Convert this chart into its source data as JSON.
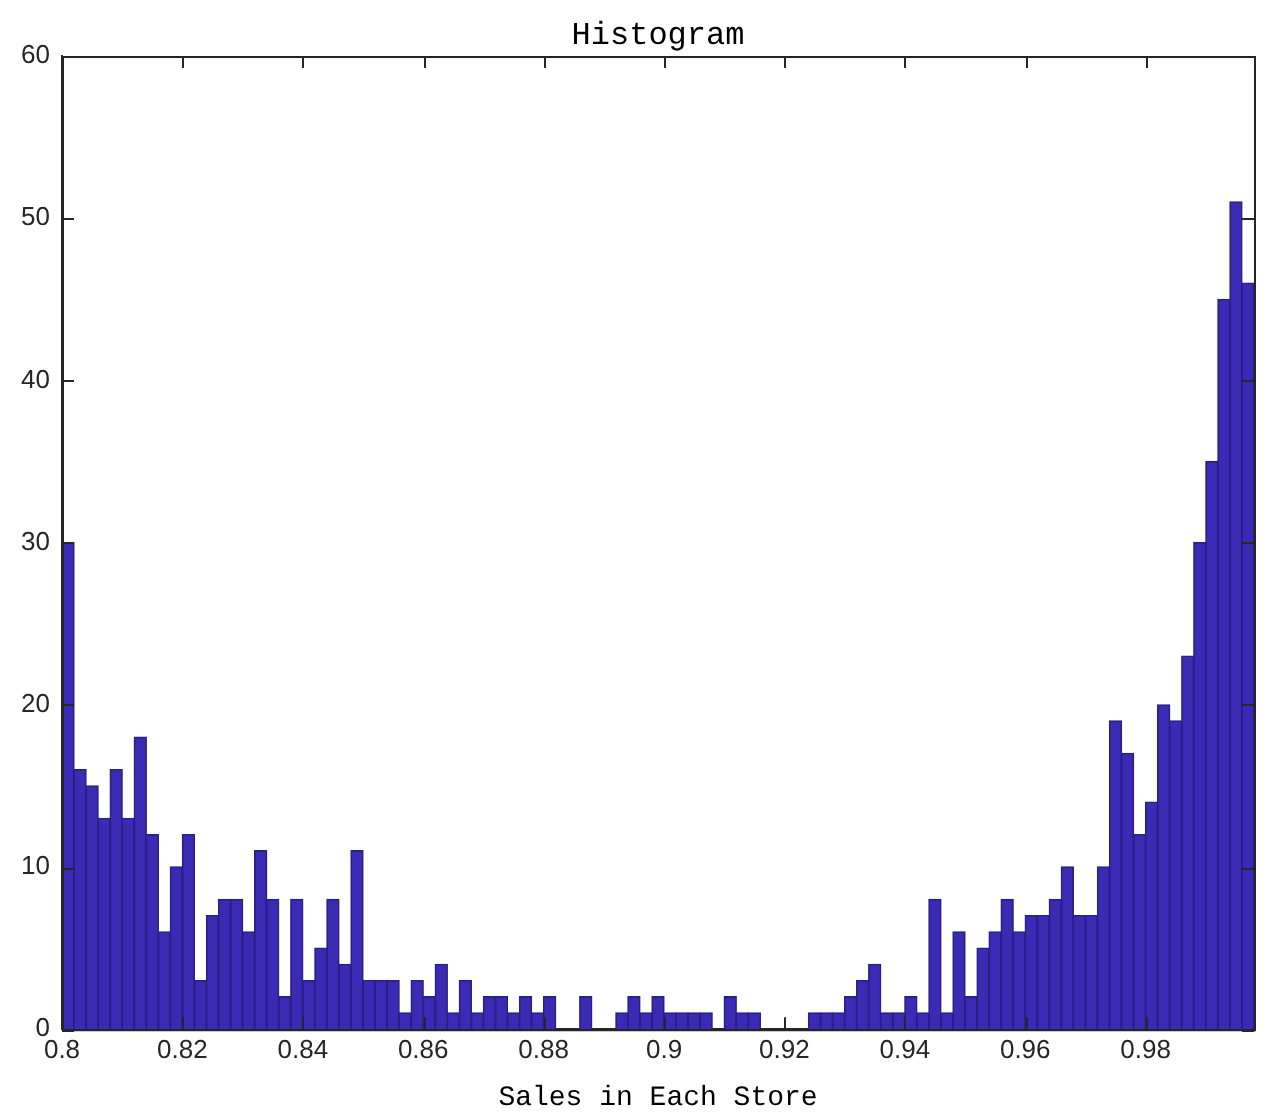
{
  "chart_data": {
    "type": "histogram",
    "title": "Histogram",
    "xlabel": "Sales in Each Store",
    "color": "#3a2ab4",
    "bins": [
      0.8,
      0.802,
      0.804,
      0.806,
      0.808,
      0.81,
      0.812,
      0.814,
      0.816,
      0.818,
      0.82,
      0.822,
      0.824,
      0.826,
      0.828,
      0.83,
      0.832,
      0.834,
      0.836,
      0.838,
      0.84,
      0.842,
      0.844,
      0.846,
      0.848,
      0.85,
      0.852,
      0.854,
      0.856,
      0.858,
      0.86,
      0.862,
      0.864,
      0.866,
      0.868,
      0.87,
      0.872,
      0.874,
      0.876,
      0.878,
      0.88,
      0.882,
      0.884,
      0.886,
      0.888,
      0.89,
      0.892,
      0.894,
      0.896,
      0.898,
      0.9,
      0.902,
      0.904,
      0.906,
      0.908,
      0.91,
      0.912,
      0.914,
      0.916,
      0.918,
      0.92,
      0.922,
      0.924,
      0.926,
      0.928,
      0.93,
      0.932,
      0.934,
      0.936,
      0.938,
      0.94,
      0.942,
      0.944,
      0.946,
      0.948,
      0.95,
      0.952,
      0.954,
      0.956,
      0.958,
      0.96,
      0.962,
      0.964,
      0.966,
      0.968,
      0.97,
      0.972,
      0.974,
      0.976,
      0.978,
      0.98,
      0.982,
      0.984,
      0.986,
      0.988,
      0.99,
      0.992,
      0.994,
      0.996,
      0.998
    ],
    "values": [
      30,
      16,
      15,
      13,
      16,
      13,
      18,
      12,
      6,
      10,
      12,
      3,
      7,
      8,
      8,
      6,
      11,
      8,
      2,
      8,
      3,
      5,
      8,
      4,
      11,
      3,
      3,
      3,
      1,
      3,
      2,
      4,
      1,
      3,
      1,
      2,
      2,
      1,
      2,
      1,
      2,
      0,
      0,
      2,
      0,
      0,
      1,
      2,
      1,
      2,
      1,
      1,
      1,
      1,
      0,
      2,
      1,
      1,
      0,
      0,
      0,
      0,
      1,
      1,
      1,
      2,
      3,
      4,
      1,
      1,
      2,
      1,
      8,
      1,
      6,
      2,
      5,
      6,
      8,
      6,
      7,
      7,
      8,
      10,
      7,
      7,
      10,
      19,
      17,
      12,
      14,
      20,
      19,
      23,
      30,
      35,
      45,
      51,
      46
    ],
    "xlim": [
      0.8,
      0.998
    ],
    "xticks": [
      0.8,
      0.82,
      0.84,
      0.86,
      0.88,
      0.9,
      0.92,
      0.94,
      0.96,
      0.98
    ],
    "ylim": [
      0,
      60
    ],
    "yticks": [
      0,
      10,
      20,
      30,
      40,
      50,
      60
    ],
    "grid": false,
    "legend": false
  }
}
